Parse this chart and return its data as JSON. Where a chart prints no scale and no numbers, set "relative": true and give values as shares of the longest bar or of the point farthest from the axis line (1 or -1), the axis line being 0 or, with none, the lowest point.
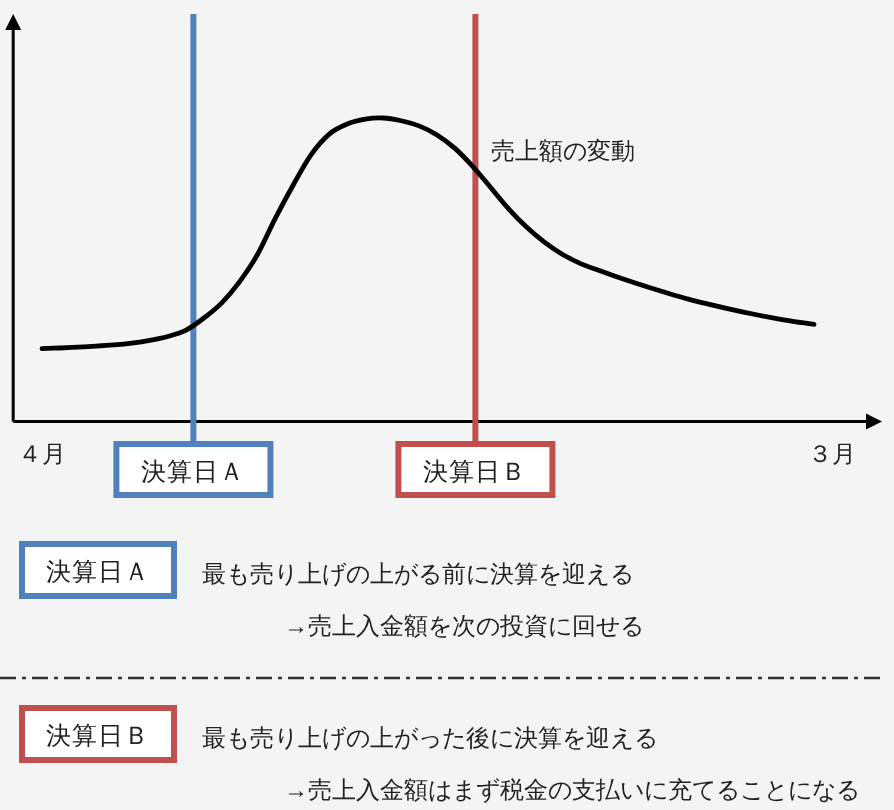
{
  "chart_data": {
    "type": "line",
    "relative": true,
    "categories": [
      "４月",
      null,
      null,
      null,
      null,
      null,
      null,
      null,
      null,
      null,
      null,
      null,
      null,
      null,
      null,
      null,
      null,
      null,
      null,
      null,
      null,
      null,
      null,
      null,
      null,
      null,
      null,
      null,
      null,
      null,
      null,
      null,
      null,
      null,
      null,
      null,
      null,
      null,
      null,
      null,
      null,
      null,
      null,
      null,
      "３月"
    ],
    "series": [
      {
        "name": "売上額の変動",
        "color": "#000000",
        "values": [
          0.24,
          0.242,
          0.245,
          0.248,
          0.252,
          0.258,
          0.267,
          0.28,
          0.3,
          0.34,
          0.39,
          0.46,
          0.55,
          0.67,
          0.78,
          0.88,
          0.947,
          0.98,
          0.996,
          1.0,
          0.991,
          0.974,
          0.944,
          0.9,
          0.84,
          0.77,
          0.7,
          0.64,
          0.59,
          0.55,
          0.52,
          0.498,
          0.477,
          0.457,
          0.438,
          0.42,
          0.403,
          0.388,
          0.374,
          0.361,
          0.349,
          0.338,
          0.328,
          0.32,
          null
        ]
      }
    ],
    "tick_labels": "x",
    "line_style": "solid",
    "annotations": [
      "決算日Ａ",
      "決算日Ｂ",
      "決算日Ａ",
      "最も売り上げの上がる前に決算を迎える",
      "→売上入金額を次の投資に回せる",
      "決算日Ｂ",
      "最も売り上げの上がった後に決算を迎える",
      "→売上入金額はまず税金の支払いに充てることになる"
    ]
  }
}
